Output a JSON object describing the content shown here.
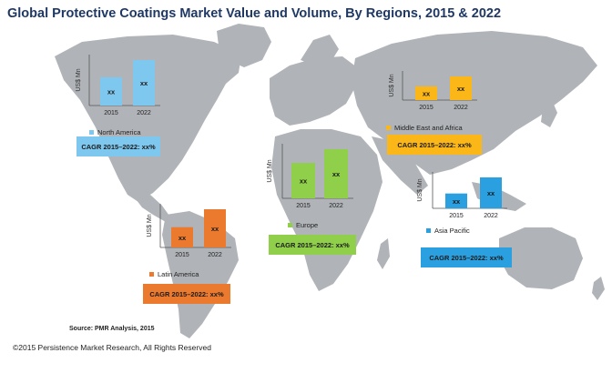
{
  "title": "Global Protective Coatings Market Value and Volume, By Regions, 2015 & 2022",
  "source": "Source: PMR Analysis, 2015",
  "copyright": "©2015 Persistence Market Research, All Rights Reserved",
  "colors": {
    "north_america": "#7ec8f0",
    "latin_america": "#ec7a2e",
    "europe": "#8fcf4a",
    "middle_east_africa": "#fbb717",
    "asia_pacific": "#2ba0e0",
    "map_land": "#b0b3b7"
  },
  "chart_data": [
    {
      "type": "bar",
      "region": "North America",
      "categories": [
        "2015",
        "2022"
      ],
      "values": [
        0.62,
        1.0
      ],
      "data_labels": [
        "xx",
        "xx"
      ],
      "ylabel": "US$ Mn",
      "ylim": [
        0,
        1
      ],
      "legend": "North America",
      "cagr": "CAGR 2015–2022: xx%",
      "color": "#7ec8f0"
    },
    {
      "type": "bar",
      "region": "Latin America",
      "categories": [
        "2015",
        "2022"
      ],
      "values": [
        0.53,
        1.0
      ],
      "data_labels": [
        "xx",
        "xx"
      ],
      "ylabel": "US$ Mn",
      "ylim": [
        0,
        1
      ],
      "legend": "Latin America",
      "cagr": "CAGR 2015–2022: xx%",
      "color": "#ec7a2e"
    },
    {
      "type": "bar",
      "region": "Europe",
      "categories": [
        "2015",
        "2022"
      ],
      "values": [
        0.72,
        1.0
      ],
      "data_labels": [
        "xx",
        "xx"
      ],
      "ylabel": "US$ Mn",
      "ylim": [
        0,
        1
      ],
      "legend": "Europe",
      "cagr": "CAGR 2015–2022: xx%",
      "color": "#8fcf4a"
    },
    {
      "type": "bar",
      "region": "Middle East and Africa",
      "categories": [
        "2015",
        "2022"
      ],
      "values": [
        0.58,
        1.0
      ],
      "data_labels": [
        "xx",
        "xx"
      ],
      "ylabel": "US$ Mn",
      "ylim": [
        0,
        1
      ],
      "legend": "Middle East and Africa",
      "cagr": "CAGR 2015–2022: xx%",
      "color": "#fbb717"
    },
    {
      "type": "bar",
      "region": "Asia Pacific",
      "categories": [
        "2015",
        "2022"
      ],
      "values": [
        0.48,
        1.0
      ],
      "data_labels": [
        "xx",
        "xx"
      ],
      "ylabel": "US$ Mn",
      "ylim": [
        0,
        1
      ],
      "legend": "Asia Pacific",
      "cagr": "CAGR 2015–2022: xx%",
      "color": "#2ba0e0"
    }
  ]
}
